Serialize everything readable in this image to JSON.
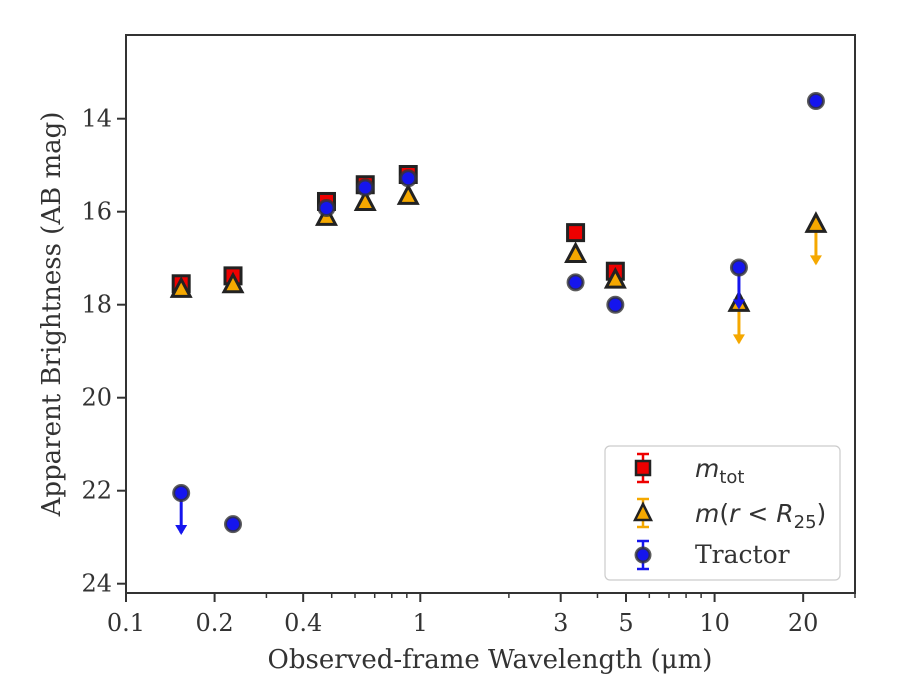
{
  "chart_data": {
    "type": "scatter",
    "xlabel": "Observed-frame Wavelength (μm)",
    "ylabel": "Apparent Brightness (AB mag)",
    "xscale": "log",
    "xlim": [
      0.1,
      30
    ],
    "ylim": [
      24.2,
      12.2
    ],
    "y_inverted": true,
    "grid": false,
    "legend_position": "bottom-right",
    "x_ticks": [
      {
        "value": 0.1,
        "label": "0.1"
      },
      {
        "value": 0.2,
        "label": "0.2"
      },
      {
        "value": 0.4,
        "label": "0.4"
      },
      {
        "value": 1,
        "label": "1"
      },
      {
        "value": 3,
        "label": "3"
      },
      {
        "value": 5,
        "label": "5"
      },
      {
        "value": 10,
        "label": "10"
      },
      {
        "value": 20,
        "label": "20"
      }
    ],
    "y_ticks": [
      {
        "value": 14,
        "label": "14"
      },
      {
        "value": 16,
        "label": "16"
      },
      {
        "value": 18,
        "label": "18"
      },
      {
        "value": 20,
        "label": "20"
      },
      {
        "value": 22,
        "label": "22"
      },
      {
        "value": 24,
        "label": "24"
      }
    ],
    "series": [
      {
        "name": "m_tot",
        "legend_base": "m",
        "legend_sub": "tot",
        "marker": "square",
        "color": "#ee0000",
        "edge": "#222222",
        "points": [
          {
            "x": 0.154,
            "y": 17.55
          },
          {
            "x": 0.231,
            "y": 17.38
          },
          {
            "x": 0.48,
            "y": 15.78
          },
          {
            "x": 0.65,
            "y": 15.42
          },
          {
            "x": 0.91,
            "y": 15.2
          },
          {
            "x": 3.37,
            "y": 16.45
          },
          {
            "x": 4.6,
            "y": 17.28
          }
        ]
      },
      {
        "name": "m(r < R25)",
        "legend_base": "m",
        "legend_sub": "25",
        "marker": "triangle",
        "color": "#f5a800",
        "edge": "#222222",
        "points": [
          {
            "x": 0.154,
            "y": 17.65
          },
          {
            "x": 0.231,
            "y": 17.55
          },
          {
            "x": 0.48,
            "y": 16.1
          },
          {
            "x": 0.65,
            "y": 15.78
          },
          {
            "x": 0.91,
            "y": 15.65
          },
          {
            "x": 3.37,
            "y": 16.9
          },
          {
            "x": 4.6,
            "y": 17.45
          },
          {
            "x": 12.1,
            "y": 17.95,
            "upper_limit": true
          },
          {
            "x": 22.1,
            "y": 16.25,
            "upper_limit": true
          }
        ]
      },
      {
        "name": "Tractor",
        "marker": "circle",
        "color": "#1515ee",
        "edge": "#333333",
        "points": [
          {
            "x": 0.154,
            "y": 22.05,
            "upper_limit": true
          },
          {
            "x": 0.231,
            "y": 22.72
          },
          {
            "x": 0.48,
            "y": 15.92
          },
          {
            "x": 0.65,
            "y": 15.48
          },
          {
            "x": 0.91,
            "y": 15.28
          },
          {
            "x": 3.37,
            "y": 17.52
          },
          {
            "x": 4.6,
            "y": 18.0
          },
          {
            "x": 12.1,
            "y": 17.2,
            "upper_limit": true
          },
          {
            "x": 22.1,
            "y": 13.62
          }
        ]
      }
    ],
    "legend": {
      "tractor_label": "Tractor"
    }
  }
}
